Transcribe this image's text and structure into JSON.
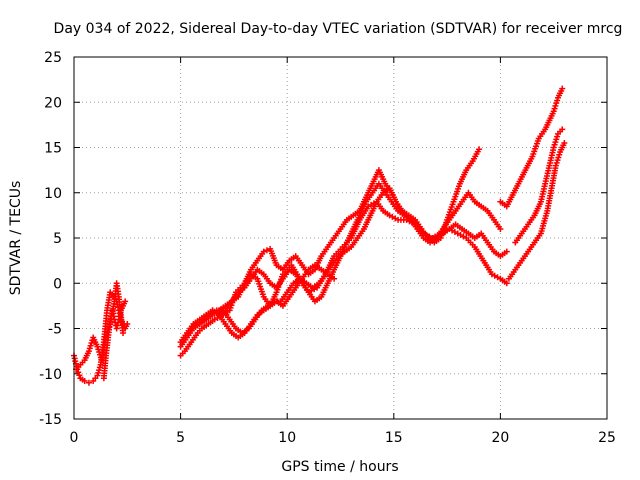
{
  "chart_data": {
    "type": "scatter",
    "title": "Day 034 of 2022, Sidereal Day-to-day VTEC variation (SDTVAR) for receiver mrcg",
    "xlabel": "GPS time / hours",
    "ylabel": "SDTVAR / TECUs",
    "xlim": [
      0,
      25
    ],
    "ylim": [
      -15,
      25
    ],
    "xticks": [
      0,
      5,
      10,
      15,
      20,
      25
    ],
    "yticks": [
      -15,
      -10,
      -5,
      0,
      5,
      10,
      15,
      20,
      25
    ],
    "grid": true,
    "marker": "+",
    "series_color": "#ff0000",
    "series": [
      {
        "x": [
          0.0,
          0.15,
          0.3,
          0.5,
          0.7,
          0.9,
          1.1,
          1.25,
          1.4,
          1.55,
          1.7,
          1.85,
          2.0,
          2.1,
          2.2,
          2.3,
          2.4,
          2.5
        ],
        "y": [
          -8,
          -9.5,
          -10.5,
          -10.8,
          -11,
          -10.8,
          -10.2,
          -9,
          -6.5,
          -3,
          -1,
          -1.5,
          -2,
          -3,
          -4,
          -4.5,
          -5,
          -4.5
        ]
      },
      {
        "x": [
          0.1,
          0.3,
          0.5,
          0.7,
          0.9,
          1.1,
          1.3,
          1.5,
          1.7,
          1.9,
          2.0,
          2.1,
          2.2,
          2.3
        ],
        "y": [
          -9.5,
          -9,
          -8.5,
          -7.5,
          -6,
          -7,
          -8.5,
          -6,
          -4.5,
          -2,
          0,
          -1.5,
          -3.5,
          -5.5
        ]
      },
      {
        "x": [
          1.4,
          1.5,
          1.6,
          1.7,
          1.8,
          1.9,
          2.0,
          2.1,
          2.2,
          2.4
        ],
        "y": [
          -10.5,
          -8,
          -6,
          -4,
          -3,
          -4,
          -5,
          -4,
          -3,
          -2
        ]
      },
      {
        "x": [
          5.0,
          5.2,
          5.5,
          5.8,
          6.0,
          6.3,
          6.6,
          7.0,
          7.3,
          7.6,
          8.0,
          8.3,
          8.6,
          8.9,
          9.2,
          9.5,
          9.8,
          10.2,
          10.6,
          11.0,
          11.4,
          11.8,
          12.2,
          12.6,
          13.0,
          13.4,
          13.8,
          14.2,
          14.5,
          14.8,
          15.2,
          15.6,
          16.0,
          16.4,
          16.8,
          17.2,
          17.6,
          18.0,
          18.4,
          18.8,
          19.2,
          19.6,
          20.0,
          20.3
        ],
        "y": [
          -8,
          -7.5,
          -6.5,
          -5.5,
          -5,
          -4.5,
          -4,
          -3.5,
          -3,
          -1,
          0,
          1,
          0.5,
          -1.5,
          -2.5,
          -1,
          1,
          2,
          0.5,
          -1,
          -0.5,
          1,
          3,
          4,
          5,
          7,
          8.5,
          9,
          8,
          7.5,
          7,
          7,
          6.5,
          5.5,
          5,
          5.5,
          6,
          5.5,
          5,
          4,
          2.5,
          1,
          0.5,
          0
        ]
      },
      {
        "x": [
          5.0,
          5.3,
          5.6,
          5.9,
          6.2,
          6.5,
          6.8,
          7.1,
          7.4,
          7.7,
          8.0,
          8.3,
          8.6,
          8.9,
          9.2,
          9.5,
          9.8,
          10.1,
          10.4,
          10.7,
          11.0,
          11.3,
          11.6,
          11.9,
          12.2,
          12.5,
          12.8,
          13.1,
          13.4,
          13.7,
          14.0,
          14.3,
          14.6,
          14.9,
          15.2,
          15.5,
          15.8,
          16.1,
          16.4,
          16.7,
          17.0,
          17.3,
          17.6,
          17.9,
          18.2,
          18.5,
          18.8,
          19.1,
          19.4,
          19.7,
          20.0,
          20.3
        ],
        "y": [
          -6.5,
          -5.5,
          -4.5,
          -4,
          -3.5,
          -3,
          -3.5,
          -3,
          -2,
          -1,
          -0.5,
          0.5,
          1.5,
          1,
          0,
          -0.5,
          0.5,
          1.5,
          1,
          0,
          -1,
          -2,
          -1.5,
          0,
          1.5,
          3,
          4.5,
          6,
          7.5,
          9,
          10,
          11,
          10,
          9,
          8,
          7.5,
          7,
          6.5,
          5.5,
          5,
          5,
          5.5,
          6,
          6.5,
          6,
          5.5,
          5,
          5.5,
          4.5,
          3.5,
          3,
          3.5
        ]
      },
      {
        "x": [
          5.0,
          5.3,
          5.6,
          5.9,
          6.2,
          6.5,
          6.8,
          7.1,
          7.4,
          7.7,
          8.0,
          8.3,
          8.6,
          8.9,
          9.2,
          9.5,
          9.8,
          10.1,
          10.4,
          10.7,
          11.0,
          11.3,
          11.6,
          11.9,
          12.2,
          12.5,
          12.8,
          13.1,
          13.4,
          13.7,
          14.0,
          14.3,
          14.6,
          14.9,
          15.2,
          15.5,
          15.8,
          16.1,
          16.4,
          16.7,
          17.0,
          17.3,
          17.6,
          17.9,
          18.2,
          18.5,
          18.8,
          19.1,
          19.4,
          19.7,
          20.0
        ],
        "y": [
          -7,
          -6,
          -5,
          -4.5,
          -4,
          -3.5,
          -3,
          -2.5,
          -2,
          -1.5,
          0,
          1.5,
          2.5,
          3.5,
          3.8,
          2,
          1.5,
          2.5,
          3,
          2,
          1,
          1.5,
          3,
          4,
          5,
          6,
          7,
          7.5,
          8,
          9.5,
          11,
          12.5,
          11,
          10,
          8.5,
          7.5,
          7,
          6,
          5,
          4.5,
          5,
          6,
          7,
          8,
          9,
          10,
          9,
          8.5,
          8,
          7,
          6
        ]
      },
      {
        "x": [
          5.5,
          5.8,
          6.1,
          6.4,
          6.7,
          7.0,
          7.3,
          7.6,
          7.9,
          8.2,
          8.5,
          8.8,
          9.1,
          9.4,
          9.7,
          10.0,
          10.3,
          10.6,
          10.9,
          11.2,
          11.5,
          11.8,
          12.1,
          12.4,
          12.7,
          13.0,
          13.3,
          13.6,
          13.9,
          14.2,
          14.5,
          14.8,
          15.1,
          15.4,
          15.7,
          16.0,
          16.3,
          16.6,
          16.9,
          17.2,
          17.5,
          17.8,
          18.1,
          18.4,
          18.7,
          19.0
        ],
        "y": [
          -5,
          -4.5,
          -4,
          -3.5,
          -3,
          -3,
          -4,
          -5,
          -5.5,
          -5,
          -4,
          -3,
          -2.5,
          -2,
          -2,
          -1,
          0,
          0.5,
          0,
          -0.5,
          0,
          1,
          2,
          3,
          3.5,
          4,
          5,
          6,
          7.5,
          9,
          10,
          10.5,
          9,
          8,
          7.5,
          7,
          6,
          5,
          4.5,
          5,
          7,
          9,
          11,
          12.5,
          13.5,
          14.8
        ]
      },
      {
        "x": [
          6.5,
          6.8,
          7.1,
          7.4,
          7.7,
          8.0,
          8.3,
          8.6,
          8.9,
          9.2,
          9.5,
          9.8,
          10.1,
          10.4,
          10.7,
          11.0,
          11.3,
          11.6,
          11.9,
          12.2
        ],
        "y": [
          -3,
          -3.5,
          -4.5,
          -5.5,
          -6,
          -5.5,
          -4.5,
          -3.5,
          -3,
          -2.5,
          -2,
          -2.5,
          -1.5,
          -0.5,
          0.5,
          1.5,
          2,
          1.5,
          1,
          0.5
        ]
      },
      {
        "x": [
          20.4,
          20.7,
          21.0,
          21.3,
          21.6,
          21.9,
          22.2,
          22.4,
          22.6,
          22.8,
          23.0
        ],
        "y": [
          0.5,
          1.5,
          2.5,
          3.5,
          4.5,
          5.5,
          8,
          10.5,
          13,
          14.5,
          15.5
        ]
      },
      {
        "x": [
          20.7,
          21.0,
          21.3,
          21.6,
          21.9,
          22.1,
          22.3,
          22.5,
          22.7,
          22.9
        ],
        "y": [
          4.5,
          5.5,
          6.5,
          7.5,
          9,
          11,
          13,
          15,
          16.5,
          17
        ]
      },
      {
        "x": [
          20.0,
          20.3,
          21.5,
          21.8,
          22.1,
          22.3,
          22.5,
          22.7,
          22.9
        ],
        "y": [
          9,
          8.5,
          14,
          16,
          17,
          18,
          19,
          20.5,
          21.5
        ]
      }
    ]
  }
}
